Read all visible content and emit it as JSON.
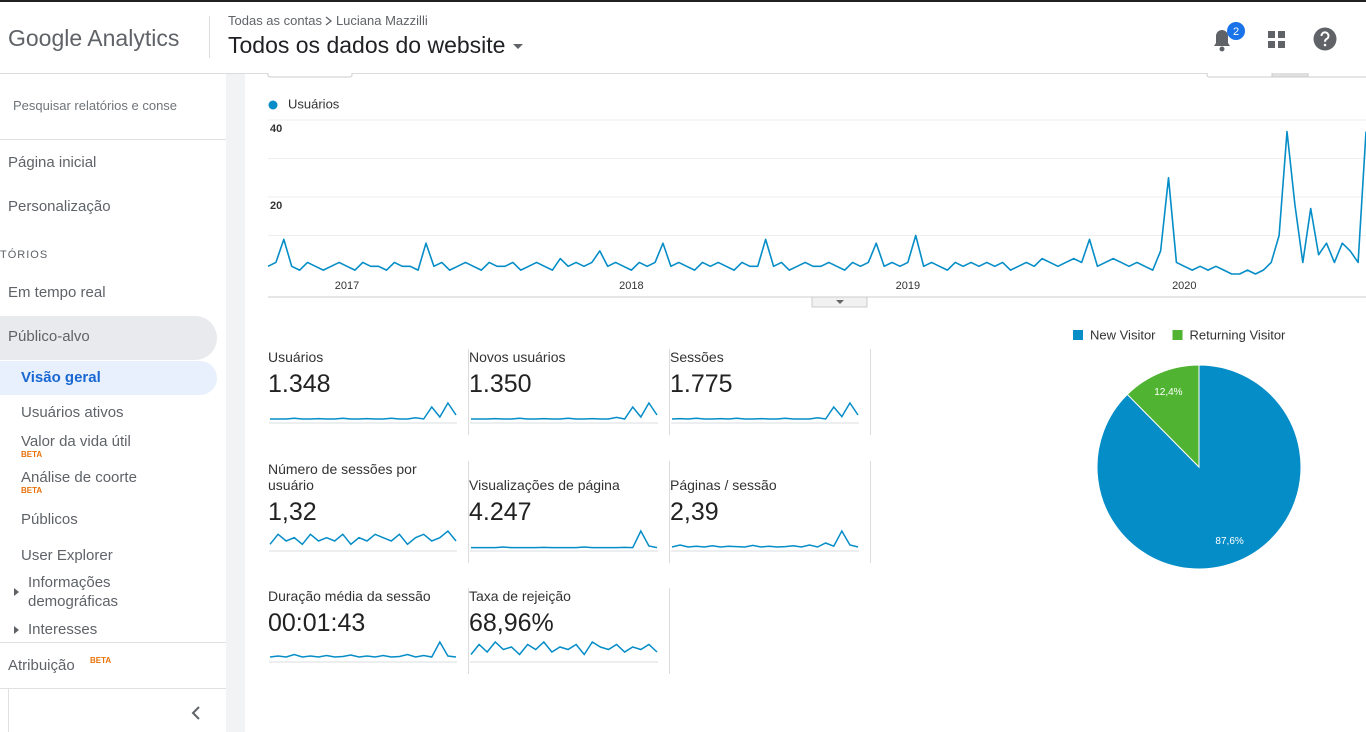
{
  "header": {
    "product": "Google Analytics",
    "breadcrumb": [
      "Todas as contas",
      "Luciana Mazzilli"
    ],
    "view": "Todos os dados do website",
    "notifications": 2
  },
  "sidebar": {
    "search_placeholder": "Pesquisar relatórios e conse",
    "home": "Página inicial",
    "customization": "Personalização",
    "section": "TÓRIOS",
    "realtime": "Em tempo real",
    "audience": {
      "label": "Público-alvo",
      "items": [
        {
          "label": "Visão geral"
        },
        {
          "label": "Usuários ativos"
        },
        {
          "label": "Valor da vida útil",
          "badge": "BETA"
        },
        {
          "label": "Análise de coorte",
          "badge": "BETA"
        },
        {
          "label": "Públicos"
        },
        {
          "label": "User Explorer"
        },
        {
          "label": "Informações demográficas"
        },
        {
          "label": "Interesses"
        }
      ]
    },
    "attribution": {
      "label": "Atribuição",
      "badge": "BETA"
    }
  },
  "overview_chart": {
    "type": "line",
    "series": [
      {
        "name": "Usuários",
        "color": "#058dc7",
        "values": [
          2,
          3,
          9,
          2,
          1,
          3,
          2,
          1,
          2,
          3,
          2,
          1,
          3,
          2,
          2,
          1,
          3,
          2,
          2,
          1,
          8,
          2,
          3,
          1,
          2,
          3,
          2,
          1,
          3,
          2,
          2,
          3,
          1,
          2,
          3,
          2,
          1,
          4,
          2,
          3,
          2,
          3,
          6,
          2,
          3,
          2,
          1,
          3,
          2,
          3,
          8,
          2,
          3,
          2,
          1,
          3,
          2,
          3,
          2,
          1,
          3,
          2,
          2,
          9,
          2,
          3,
          1,
          2,
          3,
          2,
          2,
          3,
          2,
          1,
          3,
          2,
          3,
          8,
          2,
          3,
          2,
          3,
          10,
          2,
          3,
          2,
          1,
          3,
          2,
          3,
          2,
          3,
          2,
          3,
          1,
          2,
          3,
          2,
          4,
          3,
          2,
          3,
          4,
          3,
          9,
          2,
          3,
          4,
          3,
          2,
          3,
          2,
          1,
          6,
          25,
          3,
          2,
          1,
          2,
          1,
          2,
          1,
          0,
          0,
          1,
          0,
          1,
          3,
          10,
          37,
          18,
          3,
          17,
          5,
          8,
          3,
          8,
          6,
          3,
          37
        ]
      }
    ],
    "xlim": [
      0,
      139
    ],
    "xticks": [
      {
        "value": 10,
        "label": "2017"
      },
      {
        "value": 46,
        "label": "2018"
      },
      {
        "value": 81,
        "label": "2019"
      },
      {
        "value": 116,
        "label": "2020"
      }
    ],
    "ylim": [
      0,
      40
    ],
    "yticks": [
      20,
      40
    ],
    "minor_yticks": [
      10,
      30
    ],
    "grid": true
  },
  "metrics": [
    {
      "label": "Usuários",
      "value": "1.348",
      "sparkline": [
        1,
        1,
        1,
        1.2,
        1,
        1,
        1.1,
        1,
        1,
        1.2,
        1,
        1,
        1.1,
        1,
        1,
        1.2,
        1,
        1,
        1.3,
        1,
        4,
        1.5,
        5,
        2
      ]
    },
    {
      "label": "Novos usuários",
      "value": "1.350",
      "sparkline": [
        1,
        1,
        1,
        1.1,
        1,
        1,
        1.2,
        1,
        1,
        1.1,
        1,
        1,
        1.2,
        1,
        1,
        1.1,
        1,
        1,
        1.4,
        1,
        4,
        1.5,
        5,
        2
      ]
    },
    {
      "label": "Sessões",
      "value": "1.775",
      "sparkline": [
        1,
        1.1,
        1,
        1.2,
        1,
        1,
        1.1,
        1,
        1.2,
        1,
        1,
        1.1,
        1,
        1,
        1.2,
        1,
        1,
        1,
        1.3,
        1,
        4,
        1.6,
        5,
        2
      ]
    },
    {
      "label": "Número de sessões por usuário",
      "value": "1,32",
      "sparkline": [
        2,
        5,
        3,
        4,
        2,
        5,
        3,
        4,
        3,
        5,
        2,
        4,
        3,
        5,
        4,
        3,
        5,
        2,
        4,
        5,
        3,
        4,
        6,
        3
      ]
    },
    {
      "label": "Visualizações de página",
      "value": "4.247",
      "sparkline": [
        1,
        1,
        1,
        1,
        1.2,
        1,
        1,
        1,
        1,
        1.1,
        1,
        1,
        1,
        1,
        1.2,
        1,
        1,
        1,
        1,
        1.1,
        1,
        6,
        1.5,
        1
      ]
    },
    {
      "label": "Páginas / sessão",
      "value": "2,39",
      "sparkline": [
        1,
        1.5,
        1,
        1.2,
        1,
        1.3,
        1,
        1.2,
        1.1,
        1,
        1.4,
        1,
        1.2,
        1,
        1.1,
        1.3,
        1,
        1.5,
        1,
        2,
        1.2,
        5,
        1.5,
        1
      ]
    },
    {
      "label": "Duração média da sessão",
      "value": "00:01:43",
      "sparkline": [
        1,
        1.2,
        1,
        1.5,
        1,
        1.2,
        1,
        1.3,
        1,
        1.1,
        1.4,
        1,
        1.2,
        1,
        1.3,
        1,
        1.1,
        1.5,
        1,
        1.3,
        1,
        4,
        1.2,
        1
      ]
    },
    {
      "label": "Taxa de rejeição",
      "value": "68,96%",
      "sparkline": [
        3,
        7,
        4,
        8,
        5,
        6,
        3,
        7,
        5,
        8,
        4,
        6,
        5,
        7,
        3,
        8,
        6,
        5,
        7,
        4,
        6,
        5,
        7,
        4
      ]
    }
  ],
  "visitor_pie": {
    "type": "pie",
    "categories": [
      "New Visitor",
      "Returning Visitor"
    ],
    "values": [
      87.6,
      12.4
    ],
    "value_labels": [
      "87,6%",
      "12,4%"
    ],
    "colors": [
      "#058dc7",
      "#50b432"
    ]
  }
}
